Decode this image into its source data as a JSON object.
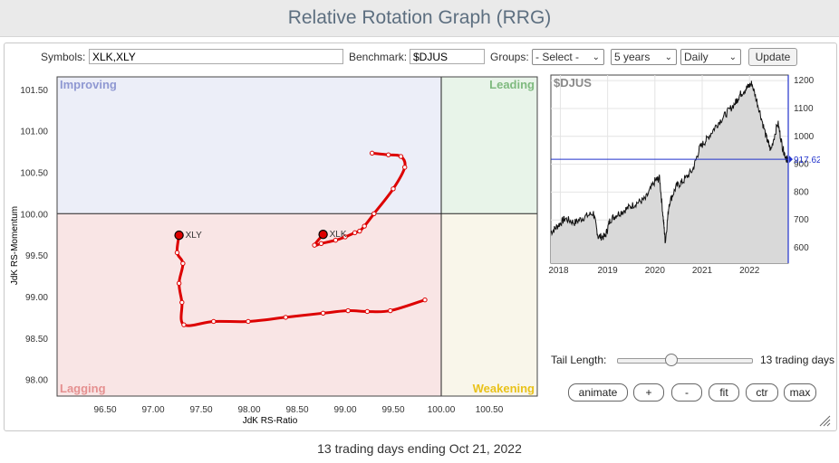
{
  "app": {
    "title": "Relative Rotation Graph (RRG)"
  },
  "toolbar": {
    "symbols_label": "Symbols:",
    "symbols_value": "XLK,XLY",
    "benchmark_label": "Benchmark:",
    "benchmark_value": "$DJUS",
    "groups_label": "Groups:",
    "groups_selected": "- Select -",
    "period_selected": "5 years",
    "frequency_selected": "Daily",
    "update_label": "Update"
  },
  "rrg": {
    "quadrants": {
      "improving": "Improving",
      "leading": "Leading",
      "lagging": "Lagging",
      "weakening": "Weakening"
    },
    "quadrant_colors": {
      "improving": "#eceef8",
      "leading": "#e8f4e9",
      "lagging": "#f9e5e5",
      "weakening": "#f9f6ea"
    },
    "quadrant_label_colors": {
      "improving": "#8f98d2",
      "leading": "#7fba7f",
      "lagging": "#e59090",
      "weakening": "#e9c21a"
    },
    "xlabel": "JdK RS-Ratio",
    "ylabel": "JdK RS-Momentum",
    "xlim": [
      96,
      101
    ],
    "ylim": [
      97.8,
      101.65
    ],
    "x_ticks": [
      "96.50",
      "97.00",
      "97.50",
      "98.00",
      "98.50",
      "99.00",
      "99.50",
      "100.00",
      "100.50"
    ],
    "y_ticks": [
      "101.50",
      "101.00",
      "100.50",
      "100.00",
      "99.50",
      "99.00",
      "98.50",
      "98.00"
    ],
    "tail_color": "#dd0000"
  },
  "chart_data": [
    {
      "type": "scatter",
      "title": "",
      "xlabel": "JdK RS-Ratio",
      "ylabel": "JdK RS-Momentum",
      "series": [
        {
          "name": "XLK",
          "points": [
            [
              99.28,
              100.73
            ],
            [
              99.45,
              100.71
            ],
            [
              99.58,
              100.69
            ],
            [
              99.62,
              100.56
            ],
            [
              99.5,
              100.3
            ],
            [
              99.3,
              100.0
            ],
            [
              99.2,
              99.85
            ],
            [
              99.15,
              99.79
            ],
            [
              99.1,
              99.77
            ],
            [
              99.0,
              99.72
            ],
            [
              98.9,
              99.68
            ],
            [
              98.75,
              99.64
            ],
            [
              98.68,
              99.62
            ],
            [
              98.77,
              99.75
            ]
          ]
        },
        {
          "name": "XLY",
          "points": [
            [
              99.83,
              98.96
            ],
            [
              99.47,
              98.83
            ],
            [
              99.23,
              98.82
            ],
            [
              99.03,
              98.83
            ],
            [
              98.77,
              98.8
            ],
            [
              98.38,
              98.75
            ],
            [
              97.99,
              98.7
            ],
            [
              97.63,
              98.7
            ],
            [
              97.32,
              98.66
            ],
            [
              97.3,
              98.93
            ],
            [
              97.27,
              99.16
            ],
            [
              97.31,
              99.4
            ],
            [
              97.25,
              99.53
            ],
            [
              97.27,
              99.74
            ]
          ]
        }
      ]
    },
    {
      "type": "area",
      "title": "$DJUS",
      "y_ticks": [
        "1200",
        "1100",
        "1000",
        "900",
        "800",
        "700",
        "600"
      ],
      "x_ticks": [
        "2018",
        "2019",
        "2020",
        "2021",
        "2022"
      ],
      "ylim": [
        545,
        1220
      ],
      "current_value": "917.62",
      "series": [
        {
          "name": "$DJUS",
          "x": [
            2017.8,
            2017.95,
            2018.1,
            2018.3,
            2018.5,
            2018.7,
            2018.8,
            2018.95,
            2019.05,
            2019.2,
            2019.4,
            2019.6,
            2019.8,
            2020.0,
            2020.1,
            2020.18,
            2020.22,
            2020.3,
            2020.45,
            2020.6,
            2020.8,
            2020.95,
            2021.1,
            2021.3,
            2021.5,
            2021.7,
            2021.8,
            2021.95,
            2022.05,
            2022.2,
            2022.35,
            2022.45,
            2022.6,
            2022.7,
            2022.78,
            2022.81
          ],
          "values": [
            655,
            680,
            705,
            690,
            710,
            725,
            640,
            640,
            700,
            720,
            740,
            760,
            775,
            840,
            850,
            700,
            620,
            760,
            820,
            840,
            880,
            960,
            990,
            1040,
            1080,
            1120,
            1150,
            1175,
            1190,
            1100,
            1000,
            950,
            1050,
            960,
            920,
            917.62
          ]
        }
      ]
    }
  ],
  "right_panel": {
    "tail_label": "Tail Length:",
    "tail_value": "13 trading days",
    "tail_fraction": 0.4
  },
  "controls": {
    "animate": "animate",
    "plus": "+",
    "minus": "-",
    "fit": "fit",
    "ctr": "ctr",
    "max": "max"
  },
  "footer": {
    "text": "13 trading days ending Oct 21, 2022"
  }
}
